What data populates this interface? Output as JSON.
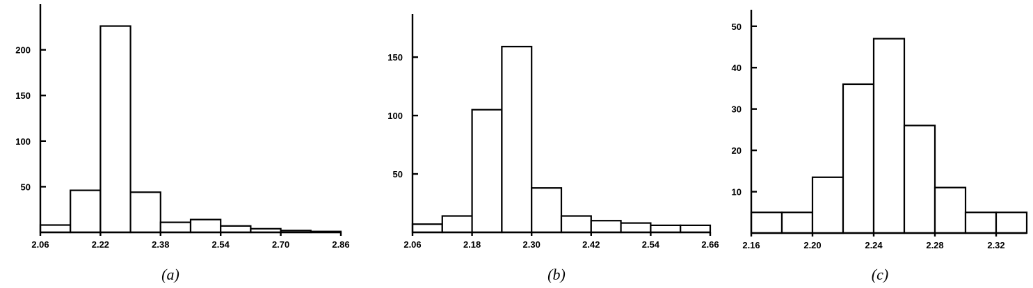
{
  "chart_data": [
    {
      "type": "bar",
      "caption": "(a)",
      "bin_edges": [
        2.06,
        2.14,
        2.22,
        2.3,
        2.38,
        2.46,
        2.54,
        2.62,
        2.7,
        2.78,
        2.86
      ],
      "values": [
        8,
        46,
        226,
        44,
        11,
        14,
        7,
        4,
        2,
        1
      ],
      "xticks": [
        "2.06",
        "2.22",
        "2.38",
        "2.54",
        "2.70",
        "2.86"
      ],
      "xtick_values": [
        2.06,
        2.22,
        2.38,
        2.54,
        2.7,
        2.86
      ],
      "yticks": [
        "50",
        "100",
        "150",
        "200"
      ],
      "ytick_values": [
        50,
        100,
        150,
        200
      ],
      "xlim": [
        2.06,
        2.86
      ],
      "ylim": [
        0,
        250
      ],
      "title": "",
      "xlabel": "",
      "ylabel": "",
      "grid": false
    },
    {
      "type": "bar",
      "caption": "(b)",
      "bin_edges": [
        2.06,
        2.12,
        2.18,
        2.24,
        2.3,
        2.36,
        2.42,
        2.48,
        2.54,
        2.6,
        2.66
      ],
      "values": [
        7,
        14,
        105,
        159,
        38,
        14,
        10,
        8,
        6,
        6
      ],
      "xticks": [
        "2.06",
        "2.18",
        "2.30",
        "2.42",
        "2.54",
        "2.66"
      ],
      "xtick_values": [
        2.06,
        2.18,
        2.3,
        2.42,
        2.54,
        2.66
      ],
      "yticks": [
        "50",
        "100",
        "150"
      ],
      "ytick_values": [
        50,
        100,
        150
      ],
      "xlim": [
        2.06,
        2.66
      ],
      "ylim": [
        0,
        187
      ],
      "title": "",
      "xlabel": "",
      "ylabel": "",
      "grid": false
    },
    {
      "type": "bar",
      "caption": "(c)",
      "bin_edges": [
        2.16,
        2.18,
        2.2,
        2.22,
        2.24,
        2.26,
        2.28,
        2.3,
        2.32,
        2.34
      ],
      "values": [
        5,
        5,
        13.5,
        36,
        47,
        26,
        11,
        5,
        5
      ],
      "xticks": [
        "2.16",
        "2.20",
        "2.24",
        "2.28",
        "2.32"
      ],
      "xtick_values": [
        2.16,
        2.2,
        2.24,
        2.28,
        2.32
      ],
      "yticks": [
        "10",
        "20",
        "30",
        "40",
        "50"
      ],
      "ytick_values": [
        10,
        20,
        30,
        40,
        50
      ],
      "xlim": [
        2.16,
        2.34
      ],
      "ylim": [
        0,
        54
      ],
      "title": "",
      "xlabel": "",
      "ylabel": "",
      "grid": false
    }
  ]
}
